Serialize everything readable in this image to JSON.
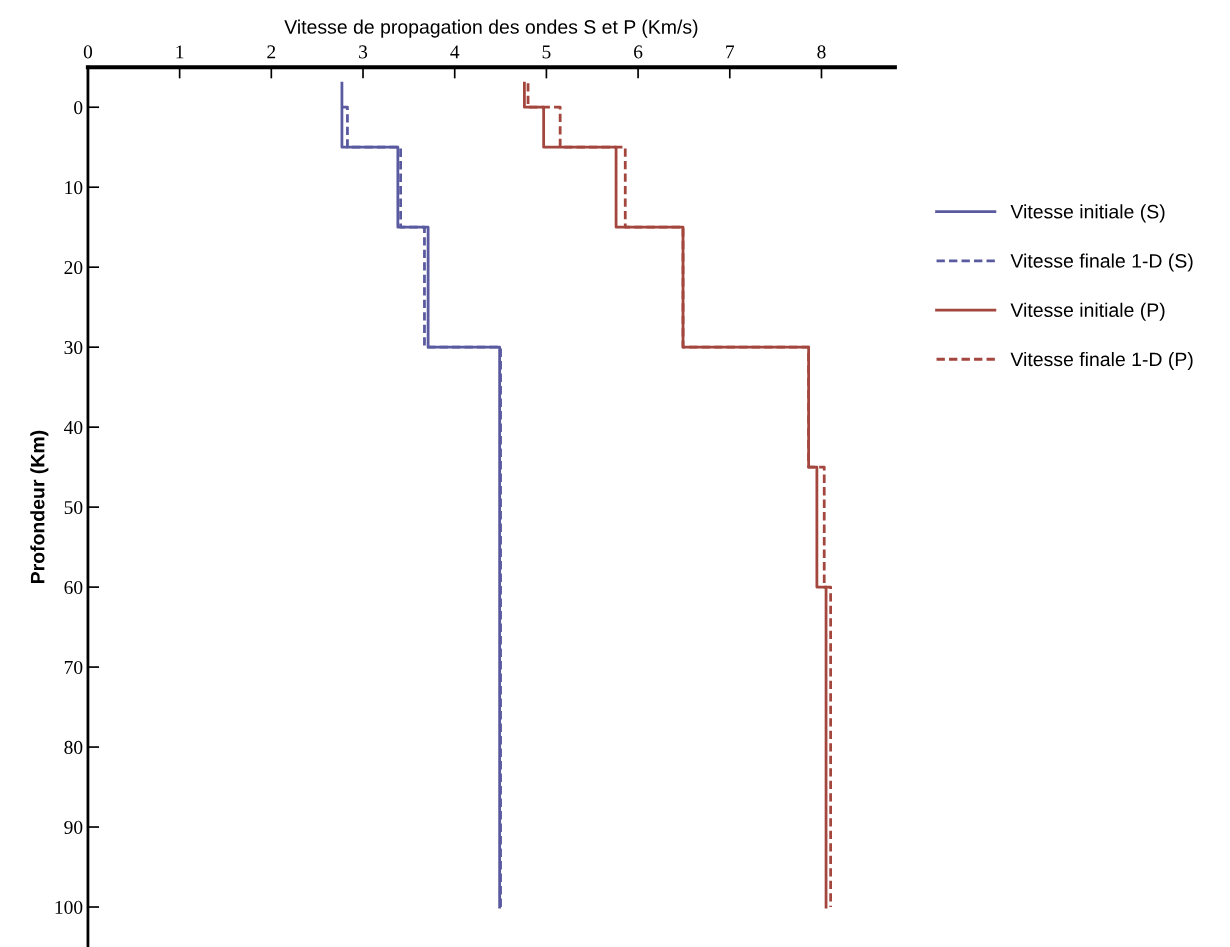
{
  "chart_data": {
    "type": "line",
    "xlabel": "Vitesse de propagation des ondes S et P (Km/s)",
    "ylabel": "Profondeur (Km)",
    "xlim": [
      0,
      8.8
    ],
    "xticks": [
      0,
      1,
      2,
      3,
      4,
      5,
      6,
      7,
      8
    ],
    "ylim": [
      105,
      -5
    ],
    "yticks": [
      0,
      10,
      20,
      30,
      40,
      50,
      60,
      70,
      80,
      90,
      100
    ],
    "grid": false,
    "legend": "right",
    "marker": "none",
    "series": [
      {
        "name": "Vitesse initiale (S)",
        "color": "#5a5aa0",
        "line_style": "solid",
        "x": [
          2.77,
          2.77,
          3.38,
          3.38,
          3.71,
          3.71,
          4.49,
          4.49
        ],
        "values": [
          -3,
          5,
          5,
          15,
          15,
          30,
          30,
          100
        ]
      },
      {
        "name": "Vitesse finale 1-D (S)",
        "color": "#5a5aa0",
        "line_style": "dashed",
        "x": [
          2.77,
          2.83,
          2.83,
          3.41,
          3.41,
          3.67,
          3.67,
          4.5,
          4.5
        ],
        "values": [
          0,
          0,
          5,
          5,
          15,
          15,
          30,
          30,
          100
        ]
      },
      {
        "name": "Vitesse initiale (P)",
        "color": "#a3463d",
        "line_style": "solid",
        "x": [
          4.76,
          4.76,
          4.97,
          4.97,
          5.76,
          5.76,
          6.49,
          6.49,
          7.86,
          7.86,
          7.95,
          7.95,
          8.05,
          8.05
        ],
        "values": [
          -3,
          0,
          0,
          5,
          5,
          15,
          15,
          30,
          30,
          45,
          45,
          60,
          60,
          100
        ]
      },
      {
        "name": "Vitesse finale 1-D (P)",
        "color": "#a3463d",
        "line_style": "dashed",
        "x": [
          4.8,
          4.8,
          5.15,
          5.15,
          5.86,
          5.86,
          6.49,
          6.49,
          7.86,
          7.86,
          8.03,
          8.03,
          8.1,
          8.1
        ],
        "values": [
          -3,
          0,
          0,
          5,
          5,
          15,
          15,
          30,
          30,
          45,
          45,
          60,
          60,
          100
        ]
      }
    ]
  }
}
